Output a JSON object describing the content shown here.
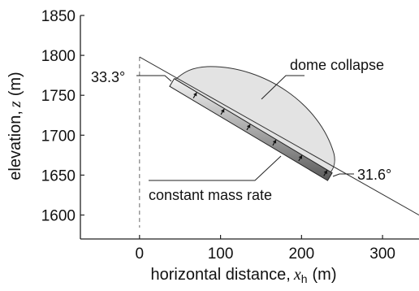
{
  "chart_data": {
    "type": "diagram",
    "xlabel": {
      "prefix": "horizontal distance,",
      "var": "x",
      "sub": "h",
      "unit": "(m)"
    },
    "ylabel": {
      "prefix": "elevation,",
      "var": "z",
      "unit": "(m)"
    },
    "xlim": [
      -73,
      345
    ],
    "ylim": [
      1570,
      1850
    ],
    "xticks": [
      0,
      100,
      200,
      300
    ],
    "yticks": [
      1600,
      1650,
      1700,
      1750,
      1800,
      1850
    ],
    "slope_line": {
      "x": [
        0,
        345
      ],
      "y": [
        1798,
        1600
      ]
    },
    "vertical_line_x": 0,
    "plate": {
      "x": [
        40,
        235
      ],
      "y": [
        1766,
        1648
      ]
    },
    "dome_collapse_region": {
      "x_start": 40,
      "x_end": 240,
      "y_top": 1786
    },
    "arrow_positions_x": [
      68,
      102,
      134,
      166,
      198,
      229
    ],
    "annotations": {
      "dome_collapse": "dome collapse",
      "constant_mass_rate": "constant mass rate",
      "angle_top": "33.3°",
      "angle_bottom": "31.6°"
    }
  }
}
